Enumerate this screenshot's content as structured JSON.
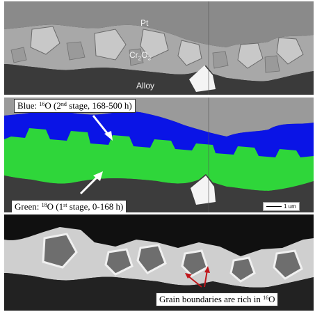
{
  "panel_top": {
    "labels": {
      "pt": "Pt",
      "oxide_main": "Cr",
      "oxide_sub": "2",
      "oxide_tail": "O",
      "oxide_sub2": "3",
      "alloy": "Alloy"
    }
  },
  "panel_middle": {
    "blue_label": {
      "prefix": "Blue: ",
      "sup": "16",
      "mid": "O (2",
      "sup2": "nd",
      "tail": " stage, 168-500 h)"
    },
    "green_label": {
      "prefix": "Green: ",
      "sup": "18",
      "mid": "O (1",
      "sup2": "st",
      "tail": " stage, 0-168 h)"
    },
    "scale_bar": "1 um",
    "colors": {
      "blue": "#0a14e6",
      "green": "#2fd63a"
    }
  },
  "panel_bottom": {
    "caption": {
      "text": "Grain boundaries are rich in ",
      "sup": "16",
      "tail": "O"
    },
    "arrow_color": "#c0161b"
  }
}
